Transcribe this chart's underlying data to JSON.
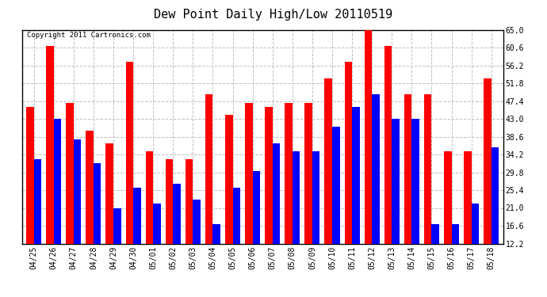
{
  "title": "Dew Point Daily High/Low 20110519",
  "copyright": "Copyright 2011 Cartronics.com",
  "categories": [
    "04/25",
    "04/26",
    "04/27",
    "04/28",
    "04/29",
    "04/30",
    "05/01",
    "05/02",
    "05/03",
    "05/04",
    "05/05",
    "05/06",
    "05/07",
    "05/08",
    "05/09",
    "05/10",
    "05/11",
    "05/12",
    "05/13",
    "05/14",
    "05/15",
    "05/16",
    "05/17",
    "05/18"
  ],
  "highs": [
    46.0,
    61.0,
    47.0,
    40.0,
    37.0,
    57.0,
    35.0,
    33.0,
    33.0,
    49.0,
    44.0,
    47.0,
    46.0,
    47.0,
    47.0,
    53.0,
    57.0,
    65.0,
    61.0,
    49.0,
    49.0,
    35.0,
    35.0,
    53.0
  ],
  "lows": [
    33.0,
    43.0,
    38.0,
    32.0,
    21.0,
    26.0,
    22.0,
    27.0,
    23.0,
    17.0,
    26.0,
    30.0,
    37.0,
    35.0,
    35.0,
    41.0,
    46.0,
    49.0,
    43.0,
    43.0,
    17.0,
    17.0,
    22.0,
    36.0
  ],
  "high_color": "#ff0000",
  "low_color": "#0000ff",
  "bg_color": "#ffffff",
  "plot_bg_color": "#ffffff",
  "grid_color": "#c0c0c0",
  "yticks": [
    12.2,
    16.6,
    21.0,
    25.4,
    29.8,
    34.2,
    38.6,
    43.0,
    47.4,
    51.8,
    56.2,
    60.6,
    65.0
  ],
  "ymin": 12.2,
  "ymax": 65.0,
  "bar_width": 0.38,
  "title_fontsize": 11,
  "tick_fontsize": 7,
  "copyright_fontsize": 6.5
}
